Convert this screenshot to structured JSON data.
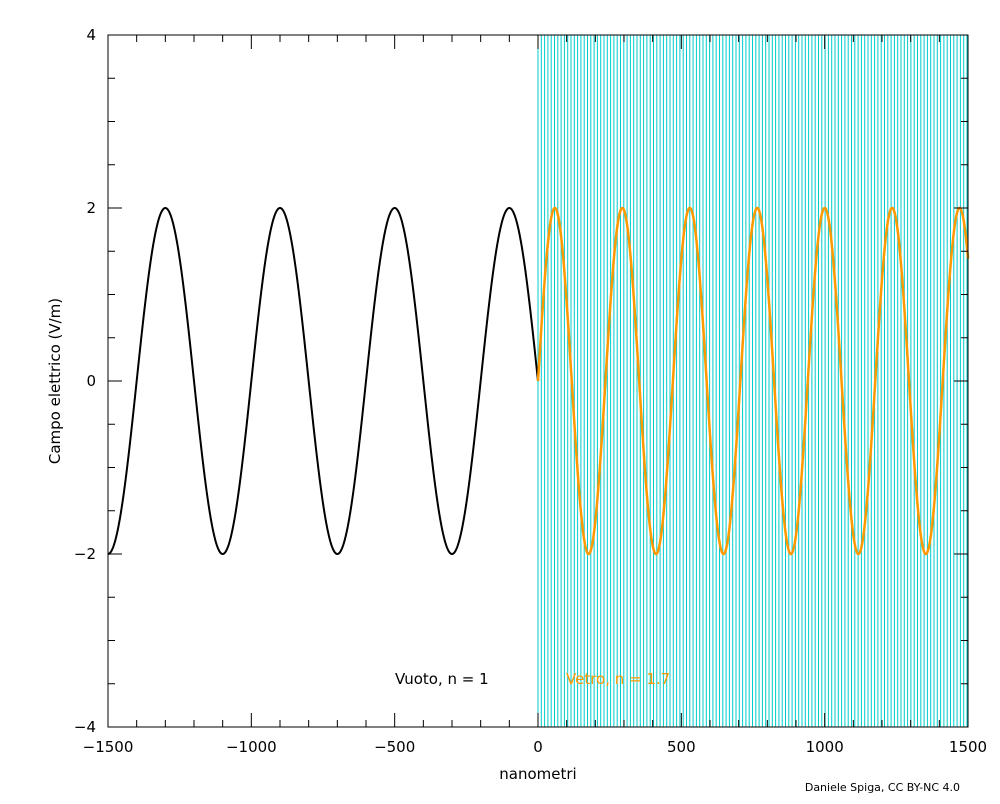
{
  "chart_data": {
    "type": "line",
    "title": "",
    "xlabel": "nanometri",
    "ylabel": "Campo elettrico (V/m)",
    "xlim": [
      -1500,
      1500
    ],
    "ylim": [
      -4,
      4
    ],
    "x_ticks": [
      -1500,
      -1000,
      -500,
      0,
      500,
      1000,
      1500
    ],
    "x_tick_labels": [
      "−1500",
      "−1000",
      "−500",
      "0",
      "500",
      "1000",
      "1500"
    ],
    "y_ticks": [
      -4,
      -2,
      0,
      2,
      4
    ],
    "y_tick_labels": [
      "−4",
      "−2",
      "0",
      "2",
      "4"
    ],
    "grid": false,
    "series": [
      {
        "amplitude": 2,
        "wavelength": 400,
        "x_range": [
          -1500,
          0
        ],
        "color": "#000000",
        "function": "-2*sin(2*pi*x/400)"
      },
      {
        "amplitude": 2,
        "wavelength": 235.3,
        "x_range": [
          0,
          1500
        ],
        "color": "#ff9900",
        "function": "2*sin(2*pi*x/235.3)"
      }
    ],
    "region": {
      "x_range": [
        0,
        1500
      ],
      "color": "#00cccc",
      "pattern": "vertical-lines"
    },
    "annotations": [
      {
        "text": "Vuoto, n = 1",
        "color": "#000000"
      },
      {
        "text": "Vetro, n = 1.7",
        "color": "#ff9900"
      }
    ]
  },
  "credit": "Daniele Spiga, CC BY-NC 4.0"
}
